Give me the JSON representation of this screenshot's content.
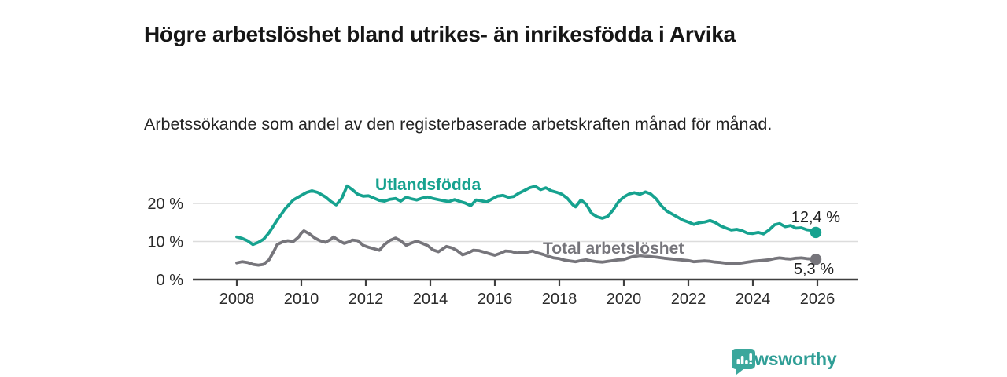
{
  "header": {
    "title": "Högre arbetslöshet bland utrikes- än inrikesfödda i Arvika",
    "subtitle": "Arbetssökande som andel av den registerbaserade arbetskraften månad för månad."
  },
  "chart_data": {
    "type": "line",
    "title": "Högre arbetslöshet bland utrikes- än inrikesfödda i Arvika",
    "subtitle": "Arbetssökande som andel av den registerbaserade arbetskraften månad för månad.",
    "xlabel": "",
    "ylabel": "",
    "grid": "horizontal-gridlines-at-10-and-20",
    "legend_position": "inline-labels-on-lines",
    "xlim": [
      2006.6,
      2027.2
    ],
    "ylim": [
      0,
      26
    ],
    "x_ticks": [
      2008,
      2010,
      2012,
      2014,
      2016,
      2018,
      2020,
      2022,
      2024,
      2026
    ],
    "x_tick_labels": [
      "2008",
      "2010",
      "2012",
      "2014",
      "2016",
      "2018",
      "2020",
      "2022",
      "2024",
      "2026"
    ],
    "y_ticks": [
      0,
      10,
      20
    ],
    "y_tick_labels": [
      "0 %",
      "10 %",
      "20 %"
    ],
    "series": [
      {
        "name": "Utlandsfödda",
        "color": "#16a28f",
        "end_label": "12,4 %",
        "end_value": 12.4,
        "points": [
          [
            2008.0,
            11.2
          ],
          [
            2008.17,
            10.8
          ],
          [
            2008.33,
            10.2
          ],
          [
            2008.5,
            9.2
          ],
          [
            2008.67,
            9.8
          ],
          [
            2008.83,
            10.6
          ],
          [
            2009.0,
            12.3
          ],
          [
            2009.25,
            15.6
          ],
          [
            2009.5,
            18.6
          ],
          [
            2009.75,
            20.9
          ],
          [
            2010.0,
            22.1
          ],
          [
            2010.17,
            22.9
          ],
          [
            2010.33,
            23.3
          ],
          [
            2010.5,
            22.9
          ],
          [
            2010.75,
            21.7
          ],
          [
            2010.92,
            20.5
          ],
          [
            2011.08,
            19.6
          ],
          [
            2011.25,
            21.3
          ],
          [
            2011.42,
            24.6
          ],
          [
            2011.58,
            23.6
          ],
          [
            2011.75,
            22.4
          ],
          [
            2011.92,
            21.9
          ],
          [
            2012.08,
            22.0
          ],
          [
            2012.25,
            21.4
          ],
          [
            2012.42,
            20.8
          ],
          [
            2012.58,
            20.6
          ],
          [
            2012.75,
            21.1
          ],
          [
            2012.92,
            21.3
          ],
          [
            2013.08,
            20.6
          ],
          [
            2013.25,
            21.6
          ],
          [
            2013.42,
            21.2
          ],
          [
            2013.58,
            20.9
          ],
          [
            2013.75,
            21.4
          ],
          [
            2013.92,
            21.7
          ],
          [
            2014.08,
            21.3
          ],
          [
            2014.25,
            21.0
          ],
          [
            2014.42,
            20.7
          ],
          [
            2014.58,
            20.5
          ],
          [
            2014.75,
            21.0
          ],
          [
            2014.92,
            20.5
          ],
          [
            2015.08,
            20.1
          ],
          [
            2015.25,
            19.4
          ],
          [
            2015.42,
            20.9
          ],
          [
            2015.58,
            20.7
          ],
          [
            2015.75,
            20.4
          ],
          [
            2015.92,
            21.2
          ],
          [
            2016.08,
            21.9
          ],
          [
            2016.25,
            22.1
          ],
          [
            2016.42,
            21.6
          ],
          [
            2016.58,
            21.8
          ],
          [
            2016.75,
            22.7
          ],
          [
            2016.92,
            23.4
          ],
          [
            2017.08,
            24.1
          ],
          [
            2017.25,
            24.5
          ],
          [
            2017.42,
            23.6
          ],
          [
            2017.58,
            24.1
          ],
          [
            2017.75,
            23.3
          ],
          [
            2017.92,
            22.9
          ],
          [
            2018.08,
            22.4
          ],
          [
            2018.25,
            21.3
          ],
          [
            2018.42,
            19.6
          ],
          [
            2018.5,
            19.1
          ],
          [
            2018.67,
            20.9
          ],
          [
            2018.83,
            19.8
          ],
          [
            2019.0,
            17.4
          ],
          [
            2019.17,
            16.5
          ],
          [
            2019.33,
            16.1
          ],
          [
            2019.5,
            16.6
          ],
          [
            2019.67,
            18.3
          ],
          [
            2019.83,
            20.4
          ],
          [
            2020.0,
            21.7
          ],
          [
            2020.17,
            22.5
          ],
          [
            2020.33,
            22.8
          ],
          [
            2020.5,
            22.4
          ],
          [
            2020.67,
            23.0
          ],
          [
            2020.83,
            22.5
          ],
          [
            2021.0,
            21.2
          ],
          [
            2021.17,
            19.3
          ],
          [
            2021.33,
            18.0
          ],
          [
            2021.5,
            17.2
          ],
          [
            2021.67,
            16.4
          ],
          [
            2021.83,
            15.6
          ],
          [
            2022.0,
            15.1
          ],
          [
            2022.17,
            14.5
          ],
          [
            2022.33,
            14.9
          ],
          [
            2022.5,
            15.1
          ],
          [
            2022.67,
            15.5
          ],
          [
            2022.83,
            15.0
          ],
          [
            2023.0,
            14.1
          ],
          [
            2023.17,
            13.5
          ],
          [
            2023.33,
            13.0
          ],
          [
            2023.5,
            13.2
          ],
          [
            2023.67,
            12.8
          ],
          [
            2023.83,
            12.2
          ],
          [
            2024.0,
            12.1
          ],
          [
            2024.17,
            12.4
          ],
          [
            2024.33,
            12.0
          ],
          [
            2024.5,
            13.0
          ],
          [
            2024.67,
            14.4
          ],
          [
            2024.83,
            14.7
          ],
          [
            2025.0,
            13.9
          ],
          [
            2025.17,
            14.2
          ],
          [
            2025.33,
            13.5
          ],
          [
            2025.5,
            13.6
          ],
          [
            2025.67,
            13.1
          ],
          [
            2025.83,
            12.9
          ],
          [
            2025.95,
            12.4
          ]
        ]
      },
      {
        "name": "Total arbetslöshet",
        "color": "#76757b",
        "end_label": "5,3 %",
        "end_value": 5.3,
        "points": [
          [
            2008.0,
            4.4
          ],
          [
            2008.17,
            4.7
          ],
          [
            2008.33,
            4.5
          ],
          [
            2008.5,
            4.0
          ],
          [
            2008.67,
            3.8
          ],
          [
            2008.83,
            4.0
          ],
          [
            2009.0,
            5.2
          ],
          [
            2009.17,
            7.8
          ],
          [
            2009.25,
            9.2
          ],
          [
            2009.42,
            9.9
          ],
          [
            2009.58,
            10.2
          ],
          [
            2009.75,
            10.0
          ],
          [
            2009.92,
            11.2
          ],
          [
            2010.0,
            12.2
          ],
          [
            2010.08,
            12.8
          ],
          [
            2010.25,
            12.0
          ],
          [
            2010.42,
            10.9
          ],
          [
            2010.58,
            10.2
          ],
          [
            2010.75,
            9.8
          ],
          [
            2010.92,
            10.6
          ],
          [
            2011.0,
            11.2
          ],
          [
            2011.17,
            10.2
          ],
          [
            2011.33,
            9.5
          ],
          [
            2011.5,
            10.0
          ],
          [
            2011.58,
            10.4
          ],
          [
            2011.75,
            10.2
          ],
          [
            2011.92,
            9.0
          ],
          [
            2012.08,
            8.5
          ],
          [
            2012.25,
            8.1
          ],
          [
            2012.42,
            7.7
          ],
          [
            2012.58,
            9.2
          ],
          [
            2012.75,
            10.3
          ],
          [
            2012.92,
            10.9
          ],
          [
            2013.08,
            10.2
          ],
          [
            2013.25,
            9.0
          ],
          [
            2013.42,
            9.6
          ],
          [
            2013.58,
            10.1
          ],
          [
            2013.75,
            9.5
          ],
          [
            2013.92,
            8.9
          ],
          [
            2014.08,
            7.8
          ],
          [
            2014.25,
            7.3
          ],
          [
            2014.5,
            8.7
          ],
          [
            2014.67,
            8.3
          ],
          [
            2014.83,
            7.6
          ],
          [
            2015.0,
            6.5
          ],
          [
            2015.17,
            7.0
          ],
          [
            2015.33,
            7.7
          ],
          [
            2015.5,
            7.6
          ],
          [
            2015.67,
            7.2
          ],
          [
            2015.83,
            6.8
          ],
          [
            2016.0,
            6.4
          ],
          [
            2016.17,
            6.9
          ],
          [
            2016.33,
            7.5
          ],
          [
            2016.5,
            7.4
          ],
          [
            2016.67,
            7.0
          ],
          [
            2016.83,
            7.1
          ],
          [
            2017.0,
            7.2
          ],
          [
            2017.17,
            7.5
          ],
          [
            2017.33,
            7.0
          ],
          [
            2017.5,
            6.6
          ],
          [
            2017.67,
            6.1
          ],
          [
            2017.83,
            5.7
          ],
          [
            2018.0,
            5.5
          ],
          [
            2018.17,
            5.1
          ],
          [
            2018.33,
            4.9
          ],
          [
            2018.5,
            4.7
          ],
          [
            2018.67,
            5.0
          ],
          [
            2018.83,
            5.2
          ],
          [
            2019.0,
            4.9
          ],
          [
            2019.17,
            4.7
          ],
          [
            2019.33,
            4.6
          ],
          [
            2019.5,
            4.8
          ],
          [
            2019.67,
            5.0
          ],
          [
            2019.83,
            5.2
          ],
          [
            2020.0,
            5.3
          ],
          [
            2020.25,
            6.0
          ],
          [
            2020.5,
            6.3
          ],
          [
            2020.75,
            6.1
          ],
          [
            2021.0,
            5.9
          ],
          [
            2021.25,
            5.6
          ],
          [
            2021.5,
            5.4
          ],
          [
            2021.75,
            5.2
          ],
          [
            2022.0,
            5.0
          ],
          [
            2022.17,
            4.7
          ],
          [
            2022.33,
            4.8
          ],
          [
            2022.5,
            4.9
          ],
          [
            2022.67,
            4.8
          ],
          [
            2022.83,
            4.6
          ],
          [
            2023.0,
            4.5
          ],
          [
            2023.17,
            4.3
          ],
          [
            2023.33,
            4.2
          ],
          [
            2023.5,
            4.2
          ],
          [
            2023.67,
            4.4
          ],
          [
            2023.83,
            4.6
          ],
          [
            2024.0,
            4.8
          ],
          [
            2024.25,
            5.0
          ],
          [
            2024.5,
            5.2
          ],
          [
            2024.67,
            5.5
          ],
          [
            2024.83,
            5.7
          ],
          [
            2025.0,
            5.5
          ],
          [
            2025.17,
            5.4
          ],
          [
            2025.33,
            5.6
          ],
          [
            2025.5,
            5.7
          ],
          [
            2025.67,
            5.5
          ],
          [
            2025.83,
            5.4
          ],
          [
            2025.95,
            5.3
          ]
        ]
      }
    ]
  },
  "branding": {
    "logo_text": "Newsworthy",
    "logo_color": "#3ba79c",
    "logo_text_color": "#2f9e96"
  }
}
